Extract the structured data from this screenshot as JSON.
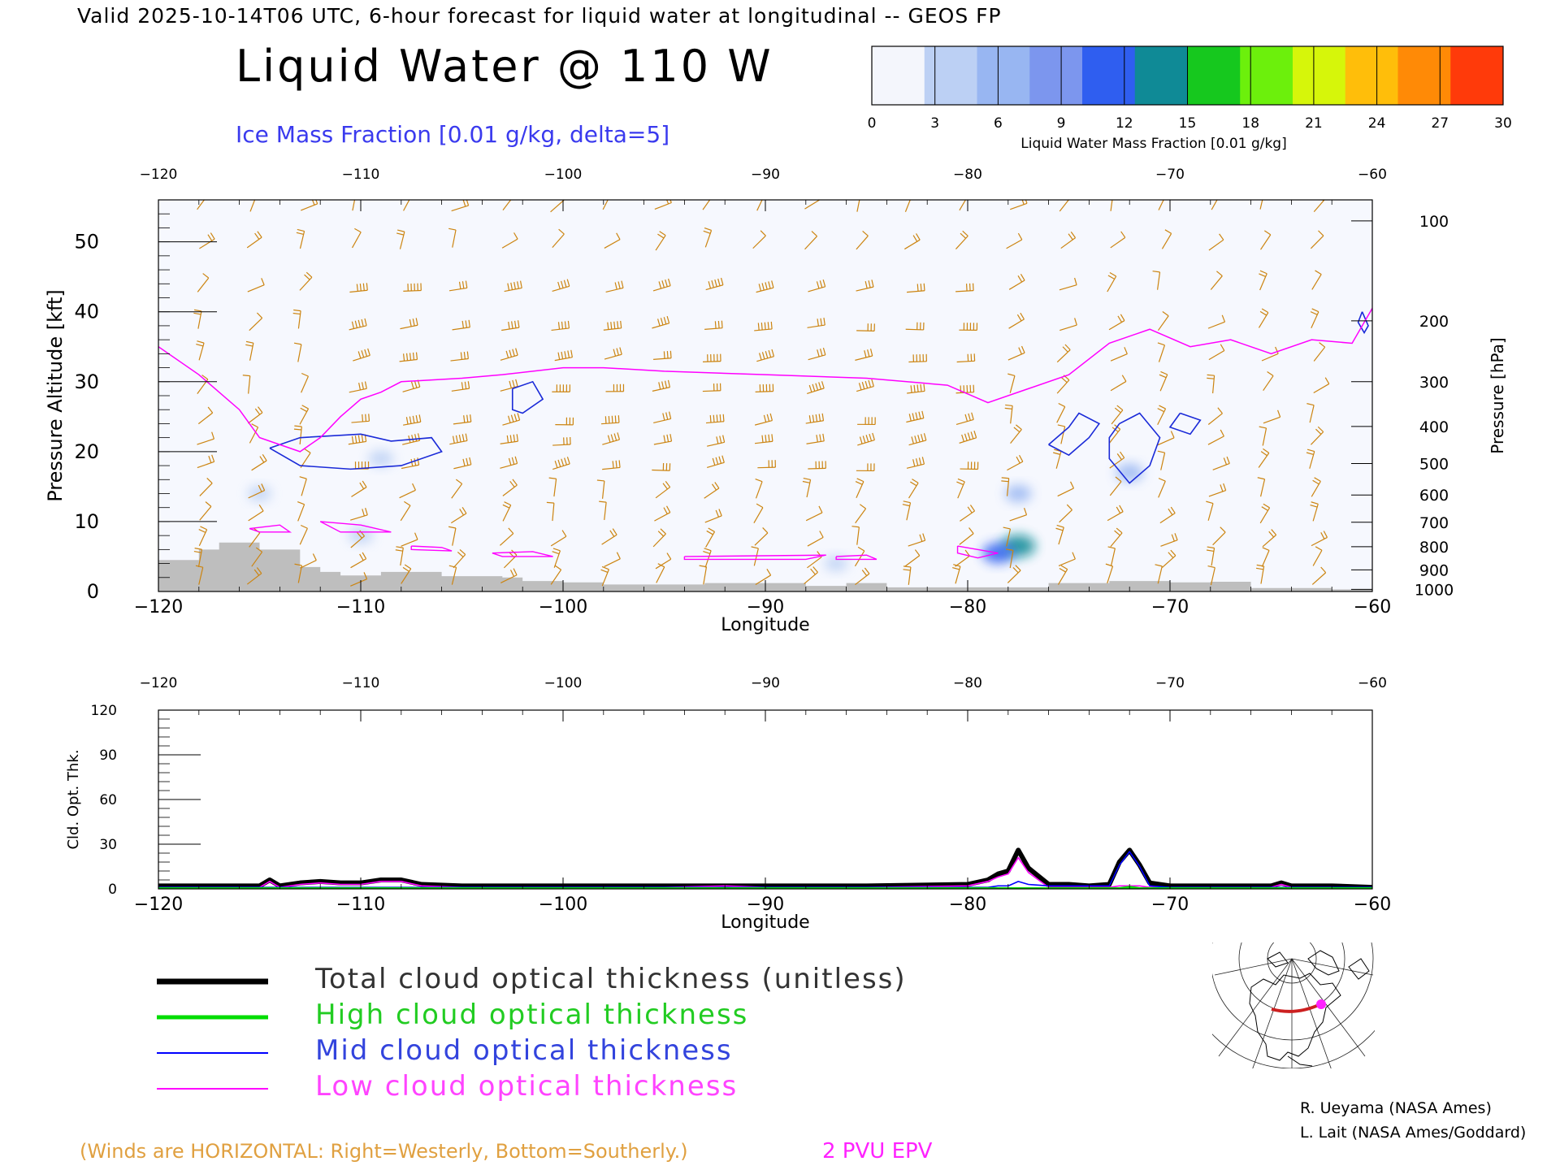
{
  "header": {
    "valid_line": "Valid 2025-10-14T06 UTC, 6-hour forecast for liquid water at longitudinal -- GEOS FP",
    "title": "Liquid Water @ 110 W",
    "ice_label": "Ice Mass Fraction [0.01 g/kg, delta=5]"
  },
  "colorbar": {
    "ticks": [
      "0",
      "3",
      "6",
      "9",
      "12",
      "15",
      "18",
      "21",
      "24",
      "27",
      "30"
    ],
    "label": "Liquid Water Mass Fraction [0.01 g/kg]",
    "colors": [
      "#f4f6fc",
      "#bcd0f4",
      "#98b6f2",
      "#7c96ee",
      "#2f5ef0",
      "#0f8a96",
      "#16c81e",
      "#6cf00c",
      "#d6f60a",
      "#ffbe0a",
      "#ff8a06",
      "#ff3a0a"
    ]
  },
  "chart_data": [
    {
      "type": "heatmap",
      "xlabel": "Longitude",
      "ylabel": "Pressure Altitude [kft]",
      "y2label": "Pressure [hPa]",
      "xlim": [
        -120,
        -60
      ],
      "ylim": [
        0,
        56
      ],
      "x_ticks": [
        "-120",
        "-110",
        "-100",
        "-90",
        "-80",
        "-70",
        "-60"
      ],
      "y_ticks": [
        "0",
        "10",
        "20",
        "30",
        "40",
        "50"
      ],
      "pressure_ticks": [
        {
          "hpa": "100",
          "kft": 53
        },
        {
          "hpa": "200",
          "kft": 38.7
        },
        {
          "hpa": "300",
          "kft": 30
        },
        {
          "hpa": "400",
          "kft": 23.6
        },
        {
          "hpa": "500",
          "kft": 18.3
        },
        {
          "hpa": "600",
          "kft": 13.8
        },
        {
          "hpa": "700",
          "kft": 9.9
        },
        {
          "hpa": "800",
          "kft": 6.4
        },
        {
          "hpa": "900",
          "kft": 3.1
        },
        {
          "hpa": "1000",
          "kft": 0.3
        }
      ],
      "tropopause_2pvu": [
        [
          -120,
          35
        ],
        [
          -118,
          31
        ],
        [
          -116,
          26
        ],
        [
          -115,
          22
        ],
        [
          -114,
          21
        ],
        [
          -113,
          20
        ],
        [
          -112,
          22
        ],
        [
          -111,
          25
        ],
        [
          -110,
          27.5
        ],
        [
          -109,
          28.5
        ],
        [
          -108,
          30
        ],
        [
          -105,
          30.5
        ],
        [
          -103,
          31
        ],
        [
          -100,
          32
        ],
        [
          -98,
          32
        ],
        [
          -95,
          31.5
        ],
        [
          -90,
          31
        ],
        [
          -85,
          30.5
        ],
        [
          -81,
          29.5
        ],
        [
          -79,
          27
        ],
        [
          -77,
          29
        ],
        [
          -75,
          31
        ],
        [
          -73,
          35.5
        ],
        [
          -71,
          37.5
        ],
        [
          -69,
          35
        ],
        [
          -67,
          36
        ],
        [
          -65,
          34
        ],
        [
          -63,
          36
        ],
        [
          -61,
          35.5
        ],
        [
          -60,
          40.5
        ]
      ],
      "terrain_kft": [
        [
          -120,
          4.5
        ],
        [
          -118,
          6
        ],
        [
          -117,
          7
        ],
        [
          -115,
          6
        ],
        [
          -113,
          3.5
        ],
        [
          -112,
          2.8
        ],
        [
          -111,
          2.3
        ],
        [
          -109,
          2.8
        ],
        [
          -106,
          2.2
        ],
        [
          -103,
          2
        ],
        [
          -102,
          1.5
        ],
        [
          -100,
          1.3
        ],
        [
          -98,
          1
        ],
        [
          -93,
          1.2
        ],
        [
          -90,
          1.2
        ],
        [
          -88,
          0.8
        ],
        [
          -86,
          1.2
        ],
        [
          -84,
          0.6
        ],
        [
          -77,
          0.6
        ],
        [
          -76,
          1.2
        ],
        [
          -73,
          1.5
        ],
        [
          -70,
          1.3
        ],
        [
          -68,
          1.4
        ],
        [
          -66,
          0.5
        ],
        [
          -62,
          0.3
        ],
        [
          -60,
          0.2
        ]
      ],
      "ice_contours": [
        [
          [
            -114.5,
            20.5
          ],
          [
            -113,
            22
          ],
          [
            -110,
            22.5
          ],
          [
            -108.5,
            21.5
          ],
          [
            -106.5,
            22
          ],
          [
            -106,
            20
          ],
          [
            -108,
            18
          ],
          [
            -110.5,
            17.5
          ],
          [
            -113,
            18
          ],
          [
            -114.5,
            20.5
          ]
        ],
        [
          [
            -102.5,
            29
          ],
          [
            -101.5,
            30
          ],
          [
            -101,
            27.5
          ],
          [
            -102,
            25.5
          ],
          [
            -102.5,
            26
          ],
          [
            -102.5,
            29
          ]
        ],
        [
          [
            -76,
            21
          ],
          [
            -75,
            23.5
          ],
          [
            -74.5,
            25.5
          ],
          [
            -73.5,
            24
          ],
          [
            -74,
            22
          ],
          [
            -75,
            19.5
          ],
          [
            -76,
            21
          ]
        ],
        [
          [
            -72.5,
            24
          ],
          [
            -71.5,
            25.5
          ],
          [
            -70.5,
            22
          ],
          [
            -71,
            18
          ],
          [
            -72,
            15.5
          ],
          [
            -73,
            19
          ],
          [
            -73,
            22
          ],
          [
            -72.5,
            24
          ]
        ],
        [
          [
            -69.5,
            25.5
          ],
          [
            -68.5,
            24.5
          ],
          [
            -69,
            22.5
          ],
          [
            -70,
            23.5
          ],
          [
            -69.5,
            25.5
          ]
        ],
        [
          [
            -60.5,
            40
          ],
          [
            -60.2,
            38
          ],
          [
            -60.4,
            37
          ],
          [
            -60.7,
            38.5
          ],
          [
            -60.5,
            40
          ]
        ]
      ],
      "liquid_blobs": [
        {
          "lon": -109,
          "kft": 19,
          "value": 3
        },
        {
          "lon": -115,
          "kft": 14,
          "value": 1
        },
        {
          "lon": -77.5,
          "kft": 6.5,
          "value": 12
        },
        {
          "lon": -78.5,
          "kft": 5.5,
          "value": 9
        },
        {
          "lon": -77.5,
          "kft": 14,
          "value": 4
        },
        {
          "lon": -72,
          "kft": 17,
          "value": 5
        },
        {
          "lon": -86.5,
          "kft": 4,
          "value": 1
        },
        {
          "lon": -110,
          "kft": 8,
          "value": 2
        }
      ],
      "low_cloud_contours": [
        [
          [
            -115.5,
            9
          ],
          [
            -114,
            9.5
          ],
          [
            -113.5,
            8.5
          ],
          [
            -115,
            8.5
          ],
          [
            -115.5,
            9
          ]
        ],
        [
          [
            -112,
            10
          ],
          [
            -110,
            9.5
          ],
          [
            -108.5,
            8.5
          ],
          [
            -111,
            8.5
          ],
          [
            -112,
            10
          ]
        ],
        [
          [
            -107.5,
            6.5
          ],
          [
            -106,
            6.3
          ],
          [
            -105.5,
            5.8
          ],
          [
            -107.5,
            6
          ],
          [
            -107.5,
            6.5
          ]
        ],
        [
          [
            -103.5,
            5.5
          ],
          [
            -101.5,
            5.7
          ],
          [
            -100.5,
            5
          ],
          [
            -103,
            5
          ],
          [
            -103.5,
            5.5
          ]
        ],
        [
          [
            -94,
            5
          ],
          [
            -87,
            5.2
          ],
          [
            -88,
            4.6
          ],
          [
            -94,
            4.6
          ],
          [
            -94,
            5
          ]
        ],
        [
          [
            -86.5,
            5
          ],
          [
            -85,
            5.2
          ],
          [
            -84.5,
            4.6
          ],
          [
            -86.5,
            4.6
          ],
          [
            -86.5,
            5
          ]
        ],
        [
          [
            -80.5,
            6.5
          ],
          [
            -78.5,
            5.5
          ],
          [
            -79.5,
            4.8
          ],
          [
            -80.5,
            5.5
          ],
          [
            -80.5,
            6.5
          ]
        ]
      ]
    },
    {
      "type": "line",
      "xlabel": "Longitude",
      "ylabel": "Cld. Opt. Thk.",
      "xlim": [
        -120,
        -60
      ],
      "ylim": [
        0,
        120
      ],
      "x_ticks": [
        "-120",
        "-110",
        "-100",
        "-90",
        "-80",
        "-70",
        "-60"
      ],
      "y_ticks": [
        "0",
        "30",
        "60",
        "90",
        "120"
      ],
      "x": [
        -120,
        -115,
        -114.5,
        -114,
        -113,
        -112,
        -111,
        -110,
        -109,
        -108,
        -107,
        -105,
        -100,
        -95,
        -92,
        -90,
        -85,
        -80,
        -79,
        -78.5,
        -78,
        -77.5,
        -77,
        -76,
        -75,
        -74,
        -73,
        -72.5,
        -72,
        -71.5,
        -71,
        -70,
        -68,
        -65,
        -64.5,
        -64,
        -62,
        -60
      ],
      "series": [
        {
          "name": "Total cloud optical thickness (unitless)",
          "color": "#000000",
          "values": [
            2,
            2,
            6,
            2,
            4,
            5,
            4,
            4,
            6,
            6,
            3,
            2,
            2,
            2,
            2,
            2,
            2,
            3,
            6,
            10,
            12,
            26,
            14,
            3,
            3,
            2,
            3,
            18,
            26,
            16,
            4,
            2,
            2,
            2,
            4,
            2,
            2,
            1
          ]
        },
        {
          "name": "High cloud optical thickness",
          "color": "#00dd00",
          "values": [
            0,
            0,
            0,
            0,
            0,
            0,
            0,
            0,
            0,
            0,
            0,
            0,
            0,
            0,
            0,
            0,
            0,
            0,
            0,
            0,
            0,
            0,
            0,
            0,
            0,
            0,
            0,
            0,
            1,
            0,
            0,
            0,
            0,
            0,
            0,
            0,
            0,
            0
          ]
        },
        {
          "name": "Mid cloud optical thickness",
          "color": "#0000ff",
          "values": [
            1,
            1,
            1,
            1,
            1,
            1,
            1,
            1,
            1,
            1,
            1,
            1,
            1,
            1,
            1,
            1,
            1,
            1,
            1,
            2,
            2,
            5,
            3,
            2,
            2,
            2,
            2,
            16,
            25,
            15,
            2,
            1,
            1,
            1,
            1,
            1,
            1,
            1
          ]
        },
        {
          "name": "Low cloud optical thickness",
          "color": "#ff00ff",
          "values": [
            1,
            1,
            5,
            1,
            3,
            4,
            3,
            3,
            5,
            5,
            2,
            1,
            1,
            1,
            2,
            1,
            1,
            2,
            5,
            8,
            10,
            21,
            11,
            1,
            1,
            1,
            1,
            2,
            2,
            2,
            1,
            1,
            1,
            1,
            3,
            1,
            1,
            0
          ]
        }
      ]
    }
  ],
  "legend": [
    {
      "label": "Total cloud optical thickness (unitless)",
      "color": "#000000",
      "text_color": "#333333"
    },
    {
      "label": "High cloud optical thickness",
      "color": "#00dd00",
      "text_color": "#22cc22"
    },
    {
      "label": "Mid cloud optical thickness",
      "color": "#0000ff",
      "text_color": "#3344dd"
    },
    {
      "label": "Low cloud optical thickness",
      "color": "#ff00ff",
      "text_color": "#ff44ff"
    }
  ],
  "footer": {
    "winds_note": "(Winds are HORIZONTAL: Right=Westerly, Bottom=Southerly.)",
    "epv_note": "2 PVU EPV",
    "credit1": "R. Ueyama (NASA Ames)",
    "credit2": "L. Lait (NASA Ames/Goddard)"
  },
  "colors": {
    "wind": "#cc8410",
    "ice_contour": "#1a2ad8",
    "epv": "#ff00ff",
    "terrain": "#bebebe",
    "field_bg": "#f6f8fe"
  }
}
